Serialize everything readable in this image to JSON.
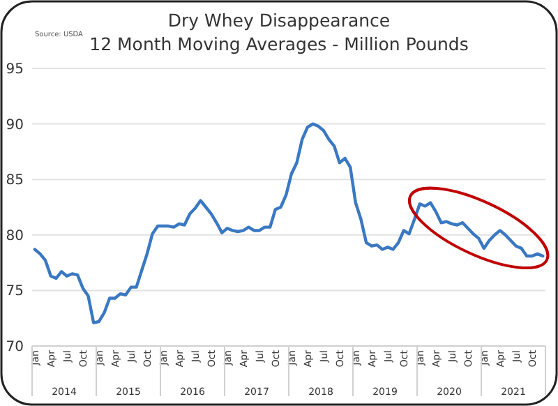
{
  "chart_data": {
    "type": "line",
    "title": "Dry Whey Disappearance",
    "subtitle": "12 Month Moving Averages - Million Pounds",
    "annotations": [
      "Source: USDA",
      "2014",
      "2015",
      "2016",
      "2017",
      "2018",
      "2019",
      "2020",
      "2021"
    ],
    "categories": [
      "Jan",
      null,
      null,
      "Apr",
      null,
      null,
      "Jul",
      null,
      null,
      "Oct",
      null,
      null,
      "Jan",
      null,
      null,
      "Apr",
      null,
      null,
      "Jul",
      null,
      null,
      "Oct",
      null,
      null,
      "Jan",
      null,
      null,
      "Apr",
      null,
      null,
      "Jul",
      null,
      null,
      "Oct",
      null,
      null,
      "Jan",
      null,
      null,
      "Apr",
      null,
      null,
      "Jul",
      null,
      null,
      "Oct",
      null,
      null,
      "Jan",
      null,
      null,
      "Apr",
      null,
      null,
      "Jul",
      null,
      null,
      "Oct",
      null,
      null,
      "Jan",
      null,
      null,
      "Apr",
      null,
      null,
      "Jul",
      null,
      null,
      "Oct",
      null,
      null,
      "Jan",
      null,
      null,
      "Apr",
      null,
      null,
      "Jul",
      null,
      null,
      "Oct",
      null,
      null,
      "Jan",
      null,
      null,
      "Apr",
      null,
      null,
      "Jul",
      null,
      null,
      "Oct",
      null,
      null
    ],
    "series": [
      {
        "color": "#3a78c2",
        "values": [
          78.7,
          78.3,
          77.7,
          76.3,
          76.1,
          76.7,
          76.3,
          76.5,
          76.4,
          75.2,
          74.5,
          72.1,
          72.2,
          73.0,
          74.3,
          74.3,
          74.7,
          74.6,
          75.3,
          75.3,
          76.8,
          78.3,
          80.1,
          80.8,
          80.8,
          80.8,
          80.7,
          81.0,
          80.9,
          81.9,
          82.4,
          83.1,
          82.5,
          81.9,
          81.1,
          80.2,
          80.6,
          80.4,
          80.3,
          80.4,
          80.7,
          80.4,
          80.4,
          80.7,
          80.7,
          82.3,
          82.5,
          83.6,
          85.5,
          86.5,
          88.6,
          89.7,
          90.0,
          89.8,
          89.4,
          88.6,
          88.0,
          86.5,
          86.9,
          86.1,
          82.9,
          81.4,
          79.3,
          79.0,
          79.1,
          78.7,
          78.9,
          78.7,
          79.3,
          80.4,
          80.1,
          81.4,
          82.8,
          82.6,
          82.9,
          82.1,
          81.1,
          81.2,
          81.0,
          80.9,
          81.1,
          80.6,
          80.1,
          79.7,
          78.8,
          79.5,
          80.0,
          80.4,
          80.0,
          79.5,
          79.0,
          78.8,
          78.1,
          78.1,
          78.3,
          78.1
        ]
      }
    ],
    "ylim": [
      70,
      95
    ],
    "yticks": [
      70,
      75,
      80,
      85,
      90,
      95
    ],
    "grid": "y",
    "line_style": "solid",
    "marker": "none"
  }
}
